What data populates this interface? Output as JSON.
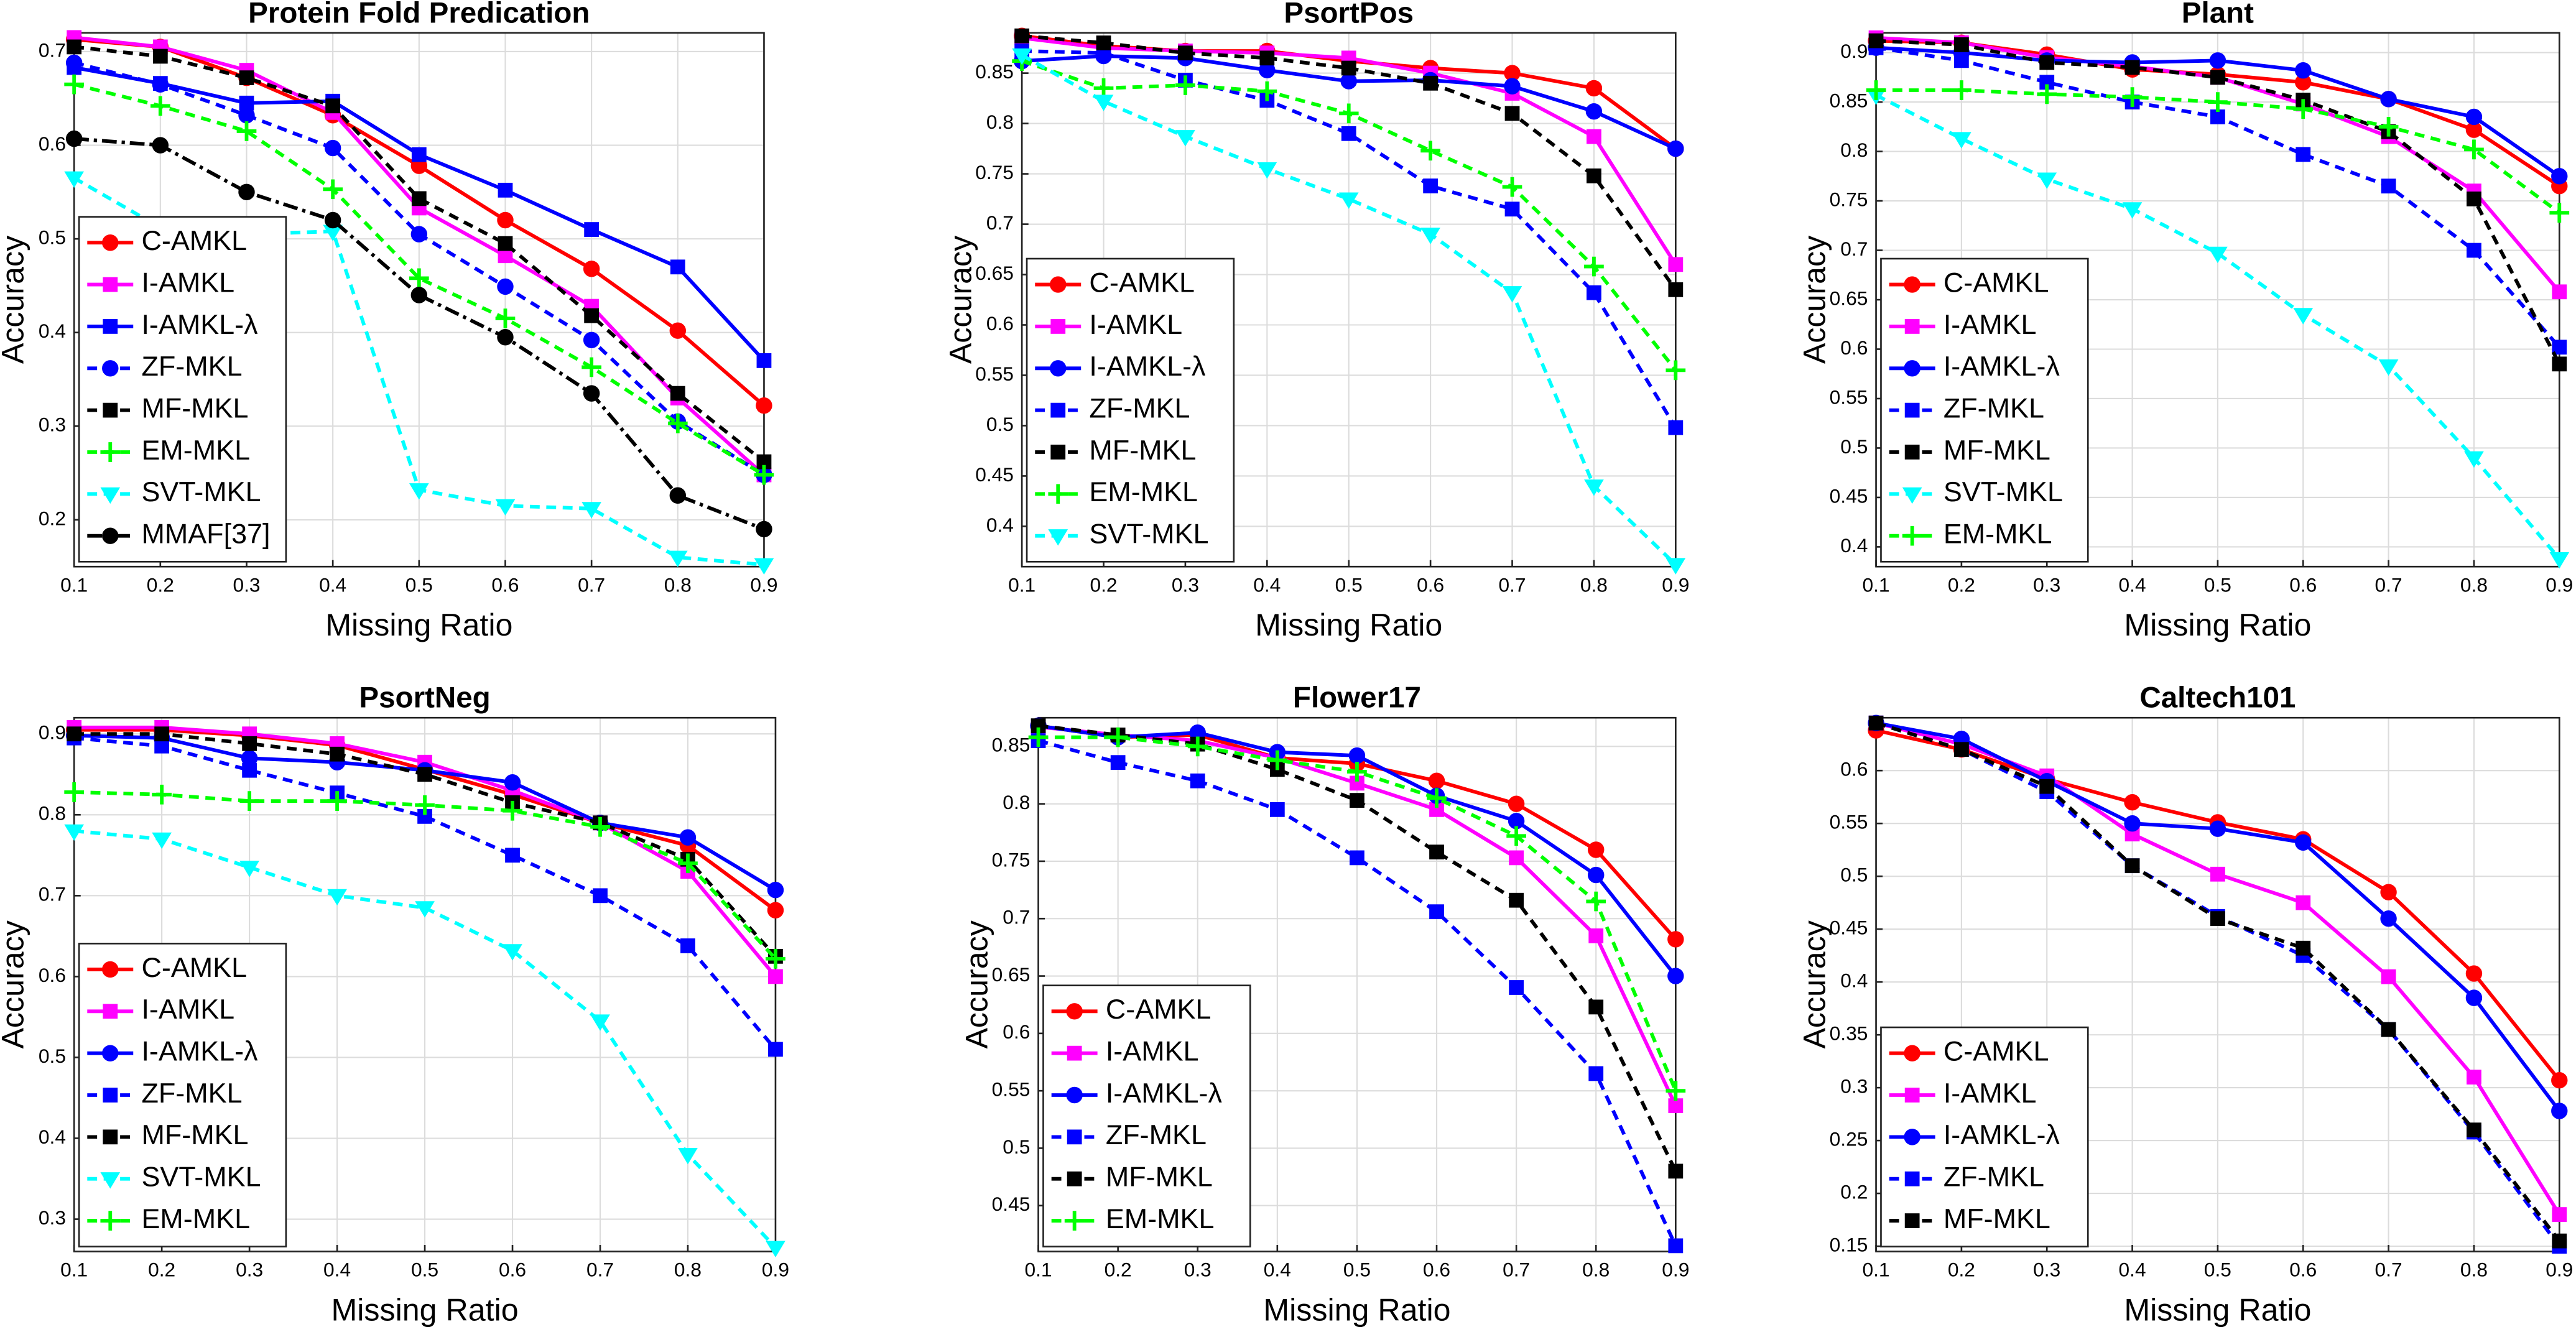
{
  "chart_data": [
    {
      "type": "line",
      "title": "Protein Fold Predication",
      "x_label": "Missing Ratio",
      "y_label": "Accuracy",
      "x": [
        0.1,
        0.2,
        0.3,
        0.4,
        0.5,
        0.6,
        0.7,
        0.8,
        0.9
      ],
      "xlim": [
        0.1,
        0.9
      ],
      "xticks": [
        0.1,
        0.2,
        0.3,
        0.4,
        0.5,
        0.6,
        0.7,
        0.8,
        0.9
      ],
      "ylim": [
        0.15,
        0.72
      ],
      "yticks": [
        0.2,
        0.3,
        0.4,
        0.5,
        0.6,
        0.7
      ],
      "grid": true,
      "legend": "lower left",
      "series": [
        {
          "name": "C-AMKL",
          "color": "#ff0000",
          "line_style": "solid",
          "marker": "circle",
          "values": [
            0.713,
            0.705,
            0.672,
            0.632,
            0.578,
            0.52,
            0.468,
            0.402,
            0.322
          ]
        },
        {
          "name": "I-AMKL",
          "color": "#ff00ff",
          "line_style": "solid",
          "marker": "square",
          "values": [
            0.715,
            0.705,
            0.68,
            0.635,
            0.533,
            0.482,
            0.428,
            0.33,
            0.248
          ]
        },
        {
          "name": "I-AMKL-λ",
          "color": "#0000ff",
          "line_style": "solid",
          "marker": "square",
          "values": [
            0.683,
            0.666,
            0.645,
            0.647,
            0.59,
            0.552,
            0.51,
            0.47,
            0.37
          ]
        },
        {
          "name": "ZF-MKL",
          "color": "#0000ff",
          "line_style": "dashed",
          "marker": "circle",
          "values": [
            0.688,
            0.665,
            0.632,
            0.597,
            0.505,
            0.449,
            0.392,
            0.305,
            0.248
          ]
        },
        {
          "name": "MF-MKL",
          "color": "#000000",
          "line_style": "dashed",
          "marker": "square",
          "values": [
            0.705,
            0.695,
            0.672,
            0.642,
            0.543,
            0.495,
            0.418,
            0.335,
            0.262
          ]
        },
        {
          "name": "EM-MKL",
          "color": "#00ff00",
          "line_style": "dashed",
          "marker": "plus",
          "values": [
            0.665,
            0.642,
            0.615,
            0.553,
            0.458,
            0.415,
            0.363,
            0.303,
            0.248
          ]
        },
        {
          "name": "SVT-MKL",
          "color": "#00ffff",
          "line_style": "dashed",
          "marker": "triangle",
          "values": [
            0.565,
            0.512,
            0.505,
            0.508,
            0.232,
            0.215,
            0.212,
            0.16,
            0.152
          ]
        },
        {
          "name": "MMAF[37]",
          "color": "#000000",
          "line_style": "dashdot",
          "marker": "circle",
          "values": [
            0.607,
            0.6,
            0.55,
            0.52,
            0.44,
            0.395,
            0.335,
            0.226,
            0.19
          ]
        }
      ]
    },
    {
      "type": "line",
      "title": "PsortPos",
      "x_label": "Missing Ratio",
      "y_label": "Accuracy",
      "x": [
        0.1,
        0.2,
        0.3,
        0.4,
        0.5,
        0.6,
        0.7,
        0.8,
        0.9
      ],
      "xlim": [
        0.1,
        0.9
      ],
      "xticks": [
        0.1,
        0.2,
        0.3,
        0.4,
        0.5,
        0.6,
        0.7,
        0.8,
        0.9
      ],
      "ylim": [
        0.36,
        0.89
      ],
      "yticks": [
        0.4,
        0.45,
        0.5,
        0.55,
        0.6,
        0.65,
        0.7,
        0.75,
        0.8,
        0.85
      ],
      "grid": true,
      "legend": "lower left",
      "series": [
        {
          "name": "C-AMKL",
          "color": "#ff0000",
          "line_style": "solid",
          "marker": "circle",
          "values": [
            0.887,
            0.877,
            0.872,
            0.872,
            0.862,
            0.855,
            0.85,
            0.835,
            0.775
          ]
        },
        {
          "name": "I-AMKL",
          "color": "#ff00ff",
          "line_style": "solid",
          "marker": "square",
          "values": [
            0.885,
            0.875,
            0.872,
            0.87,
            0.865,
            0.85,
            0.83,
            0.787,
            0.66
          ]
        },
        {
          "name": "I-AMKL-λ",
          "color": "#0000ff",
          "line_style": "solid",
          "marker": "circle",
          "values": [
            0.862,
            0.867,
            0.865,
            0.853,
            0.842,
            0.843,
            0.837,
            0.812,
            0.775
          ]
        },
        {
          "name": "ZF-MKL",
          "color": "#0000ff",
          "line_style": "dashed",
          "marker": "square",
          "values": [
            0.872,
            0.87,
            0.843,
            0.823,
            0.79,
            0.738,
            0.715,
            0.632,
            0.498
          ]
        },
        {
          "name": "MF-MKL",
          "color": "#000000",
          "line_style": "dashed",
          "marker": "square",
          "values": [
            0.887,
            0.88,
            0.87,
            0.865,
            0.855,
            0.84,
            0.81,
            0.748,
            0.635
          ]
        },
        {
          "name": "EM-MKL",
          "color": "#00ff00",
          "line_style": "dashed",
          "marker": "plus",
          "values": [
            0.862,
            0.835,
            0.838,
            0.832,
            0.81,
            0.773,
            0.737,
            0.658,
            0.555
          ]
        },
        {
          "name": "SVT-MKL",
          "color": "#00ffff",
          "line_style": "dashed",
          "marker": "triangle",
          "values": [
            0.868,
            0.822,
            0.787,
            0.755,
            0.725,
            0.69,
            0.632,
            0.44,
            0.362
          ]
        }
      ]
    },
    {
      "type": "line",
      "title": "Plant",
      "x_label": "Missing Ratio",
      "y_label": "Accuracy",
      "x": [
        0.1,
        0.2,
        0.3,
        0.4,
        0.5,
        0.6,
        0.7,
        0.8,
        0.9
      ],
      "xlim": [
        0.1,
        0.9
      ],
      "xticks": [
        0.1,
        0.2,
        0.3,
        0.4,
        0.5,
        0.6,
        0.7,
        0.8,
        0.9
      ],
      "ylim": [
        0.38,
        0.92
      ],
      "yticks": [
        0.4,
        0.45,
        0.5,
        0.55,
        0.6,
        0.65,
        0.7,
        0.75,
        0.8,
        0.85,
        0.9
      ],
      "grid": true,
      "legend": "lower left",
      "series": [
        {
          "name": "C-AMKL",
          "color": "#ff0000",
          "line_style": "solid",
          "marker": "circle",
          "values": [
            0.912,
            0.91,
            0.898,
            0.883,
            0.878,
            0.87,
            0.853,
            0.822,
            0.765
          ]
        },
        {
          "name": "I-AMKL",
          "color": "#ff00ff",
          "line_style": "solid",
          "marker": "square",
          "values": [
            0.915,
            0.91,
            0.895,
            0.886,
            0.875,
            0.848,
            0.815,
            0.76,
            0.658
          ]
        },
        {
          "name": "I-AMKL-λ",
          "color": "#0000ff",
          "line_style": "solid",
          "marker": "circle",
          "values": [
            0.905,
            0.9,
            0.892,
            0.89,
            0.892,
            0.882,
            0.853,
            0.835,
            0.775
          ]
        },
        {
          "name": "ZF-MKL",
          "color": "#0000ff",
          "line_style": "dashed",
          "marker": "square",
          "values": [
            0.905,
            0.892,
            0.87,
            0.85,
            0.835,
            0.797,
            0.765,
            0.7,
            0.602
          ]
        },
        {
          "name": "MF-MKL",
          "color": "#000000",
          "line_style": "dashed",
          "marker": "square",
          "values": [
            0.912,
            0.908,
            0.89,
            0.885,
            0.875,
            0.852,
            0.82,
            0.752,
            0.585
          ]
        },
        {
          "name": "SVT-MKL",
          "color": "#00ffff",
          "line_style": "dashed",
          "marker": "triangle",
          "values": [
            0.857,
            0.813,
            0.772,
            0.742,
            0.697,
            0.635,
            0.583,
            0.49,
            0.388
          ]
        },
        {
          "name": "EM-MKL",
          "color": "#00ff00",
          "line_style": "dashed",
          "marker": "plus",
          "values": [
            0.862,
            0.862,
            0.858,
            0.855,
            0.85,
            0.843,
            0.825,
            0.802,
            0.738
          ]
        }
      ]
    },
    {
      "type": "line",
      "title": "PsortNeg",
      "x_label": "Missing Ratio",
      "y_label": "Accuracy",
      "x": [
        0.1,
        0.2,
        0.3,
        0.4,
        0.5,
        0.6,
        0.7,
        0.8,
        0.9
      ],
      "xlim": [
        0.1,
        0.9
      ],
      "xticks": [
        0.1,
        0.2,
        0.3,
        0.4,
        0.5,
        0.6,
        0.7,
        0.8,
        0.9
      ],
      "ylim": [
        0.26,
        0.92
      ],
      "yticks": [
        0.3,
        0.4,
        0.5,
        0.6,
        0.7,
        0.8,
        0.9
      ],
      "grid": true,
      "legend": "lower left",
      "series": [
        {
          "name": "C-AMKL",
          "color": "#ff0000",
          "line_style": "solid",
          "marker": "circle",
          "values": [
            0.905,
            0.905,
            0.898,
            0.886,
            0.856,
            0.825,
            0.79,
            0.762,
            0.682
          ]
        },
        {
          "name": "I-AMKL",
          "color": "#ff00ff",
          "line_style": "solid",
          "marker": "square",
          "values": [
            0.908,
            0.908,
            0.9,
            0.888,
            0.865,
            0.83,
            0.79,
            0.73,
            0.6
          ]
        },
        {
          "name": "I-AMKL-λ",
          "color": "#0000ff",
          "line_style": "solid",
          "marker": "circle",
          "values": [
            0.898,
            0.895,
            0.87,
            0.865,
            0.855,
            0.84,
            0.79,
            0.772,
            0.707
          ]
        },
        {
          "name": "ZF-MKL",
          "color": "#0000ff",
          "line_style": "dashed",
          "marker": "square",
          "values": [
            0.895,
            0.885,
            0.855,
            0.827,
            0.798,
            0.75,
            0.7,
            0.638,
            0.51
          ]
        },
        {
          "name": "MF-MKL",
          "color": "#000000",
          "line_style": "dashed",
          "marker": "square",
          "values": [
            0.9,
            0.9,
            0.888,
            0.875,
            0.85,
            0.815,
            0.79,
            0.745,
            0.625
          ]
        },
        {
          "name": "SVT-MKL",
          "color": "#00ffff",
          "line_style": "dashed",
          "marker": "triangle",
          "values": [
            0.78,
            0.77,
            0.735,
            0.7,
            0.685,
            0.632,
            0.545,
            0.38,
            0.265
          ]
        },
        {
          "name": "EM-MKL",
          "color": "#00ff00",
          "line_style": "dashed",
          "marker": "plus",
          "values": [
            0.828,
            0.825,
            0.817,
            0.817,
            0.812,
            0.805,
            0.785,
            0.74,
            0.622
          ]
        }
      ]
    },
    {
      "type": "line",
      "title": "Flower17",
      "x_label": "Missing Ratio",
      "y_label": "Accuracy",
      "x": [
        0.1,
        0.2,
        0.3,
        0.4,
        0.5,
        0.6,
        0.7,
        0.8,
        0.9
      ],
      "xlim": [
        0.1,
        0.9
      ],
      "xticks": [
        0.1,
        0.2,
        0.3,
        0.4,
        0.5,
        0.6,
        0.7,
        0.8,
        0.9
      ],
      "ylim": [
        0.41,
        0.875
      ],
      "yticks": [
        0.45,
        0.5,
        0.55,
        0.6,
        0.65,
        0.7,
        0.75,
        0.8,
        0.85
      ],
      "grid": true,
      "legend": "lower left",
      "series": [
        {
          "name": "C-AMKL",
          "color": "#ff0000",
          "line_style": "solid",
          "marker": "circle",
          "values": [
            0.868,
            0.858,
            0.86,
            0.84,
            0.835,
            0.82,
            0.8,
            0.76,
            0.682
          ]
        },
        {
          "name": "I-AMKL",
          "color": "#ff00ff",
          "line_style": "solid",
          "marker": "square",
          "values": [
            0.867,
            0.86,
            0.855,
            0.84,
            0.818,
            0.795,
            0.753,
            0.685,
            0.537
          ]
        },
        {
          "name": "I-AMKL-λ",
          "color": "#0000ff",
          "line_style": "solid",
          "marker": "circle",
          "values": [
            0.868,
            0.858,
            0.862,
            0.845,
            0.842,
            0.807,
            0.785,
            0.738,
            0.65
          ]
        },
        {
          "name": "ZF-MKL",
          "color": "#0000ff",
          "line_style": "dashed",
          "marker": "square",
          "values": [
            0.855,
            0.836,
            0.82,
            0.795,
            0.753,
            0.706,
            0.64,
            0.565,
            0.415
          ]
        },
        {
          "name": "MF-MKL",
          "color": "#000000",
          "line_style": "dashed",
          "marker": "square",
          "values": [
            0.868,
            0.86,
            0.852,
            0.83,
            0.803,
            0.758,
            0.716,
            0.623,
            0.48
          ]
        },
        {
          "name": "EM-MKL",
          "color": "#00ff00",
          "line_style": "dashed",
          "marker": "plus",
          "values": [
            0.858,
            0.858,
            0.85,
            0.838,
            0.828,
            0.805,
            0.772,
            0.715,
            0.55
          ]
        }
      ]
    },
    {
      "type": "line",
      "title": "Caltech101",
      "x_label": "Missing Ratio",
      "y_label": "Accuracy",
      "x": [
        0.1,
        0.2,
        0.3,
        0.4,
        0.5,
        0.6,
        0.7,
        0.8,
        0.9
      ],
      "xlim": [
        0.1,
        0.9
      ],
      "xticks": [
        0.1,
        0.2,
        0.3,
        0.4,
        0.5,
        0.6,
        0.7,
        0.8,
        0.9
      ],
      "ylim": [
        0.145,
        0.65
      ],
      "yticks": [
        0.15,
        0.2,
        0.25,
        0.3,
        0.35,
        0.4,
        0.45,
        0.5,
        0.55,
        0.6
      ],
      "grid": true,
      "legend": "lower left",
      "series": [
        {
          "name": "C-AMKL",
          "color": "#ff0000",
          "line_style": "solid",
          "marker": "circle",
          "values": [
            0.638,
            0.62,
            0.592,
            0.57,
            0.551,
            0.535,
            0.485,
            0.408,
            0.307
          ]
        },
        {
          "name": "I-AMKL",
          "color": "#ff00ff",
          "line_style": "solid",
          "marker": "square",
          "values": [
            0.645,
            0.625,
            0.595,
            0.54,
            0.502,
            0.475,
            0.405,
            0.31,
            0.18
          ]
        },
        {
          "name": "I-AMKL-λ",
          "color": "#0000ff",
          "line_style": "solid",
          "marker": "circle",
          "values": [
            0.645,
            0.63,
            0.59,
            0.55,
            0.545,
            0.532,
            0.46,
            0.385,
            0.278
          ]
        },
        {
          "name": "ZF-MKL",
          "color": "#0000ff",
          "line_style": "dashed",
          "marker": "square",
          "values": [
            0.645,
            0.62,
            0.58,
            0.51,
            0.462,
            0.425,
            0.355,
            0.258,
            0.15
          ]
        },
        {
          "name": "MF-MKL",
          "color": "#000000",
          "line_style": "dashed",
          "marker": "square",
          "values": [
            0.645,
            0.62,
            0.585,
            0.51,
            0.46,
            0.432,
            0.355,
            0.26,
            0.155
          ]
        }
      ]
    }
  ]
}
